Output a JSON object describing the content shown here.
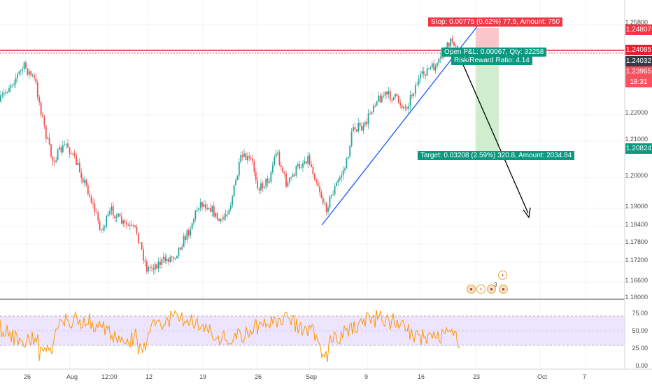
{
  "price_axis": {
    "ticks": [
      "1.25800",
      "1.22000",
      "1.21000",
      "1.20000",
      "1.19000",
      "1.18400",
      "1.17800",
      "1.17200",
      "1.16600",
      "1.16000"
    ],
    "tags": {
      "stop": {
        "value": "1.24807",
        "color": "#f23645"
      },
      "entry": {
        "value": "1.24085",
        "color": "#e5202e"
      },
      "last": {
        "value": "1.24032",
        "color": "#363a45"
      },
      "prev": {
        "value": "1.23965",
        "color": "#f7525f"
      },
      "timer": {
        "value": "18:31",
        "color": "#f7525f"
      },
      "target": {
        "value": "1.20824",
        "color": "#089981"
      }
    }
  },
  "rsi_axis": {
    "ticks": [
      "75.00",
      "50.00",
      "25.00",
      "0.00"
    ]
  },
  "time_axis": {
    "ticks": [
      "26",
      "Aug",
      "12:00",
      "12",
      "19",
      "26",
      "Sep",
      "9",
      "16",
      "23",
      "Oct",
      "7"
    ]
  },
  "position": {
    "stop_label": "Stop: 0.00775 (0.62%) 77.5, Amount: 750",
    "pnl_label": "Open P&L: 0.00067, Qty: 32258",
    "rr_label": "Risk/Reward Ratio: 4.14",
    "target_label": "Target: 0.03208 (2.59%) 320.8, Amount: 2034.84"
  },
  "events": {
    "count_label": "3"
  },
  "colors": {
    "up": "#26a69a",
    "down": "#ef5350",
    "resistance": "#e5202e",
    "trendline": "#2962ff",
    "rsi_line": "#ff9800",
    "rsi_band": "#e1d5ff"
  }
}
